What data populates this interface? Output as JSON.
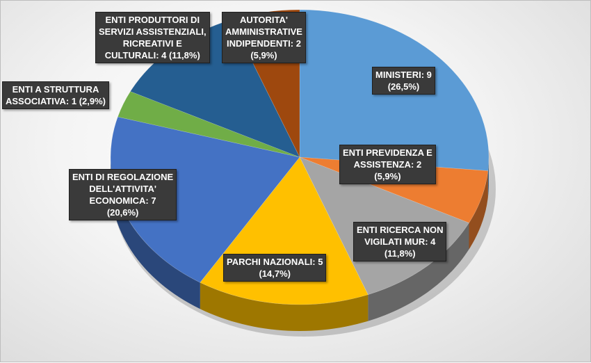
{
  "chart_data": {
    "type": "pie",
    "title": "",
    "slices": [
      {
        "name": "MINISTERI",
        "value": 9,
        "percent": "26,5%",
        "color": "#5b9bd5",
        "label": "MINISTERI: 9\n(26,5%)"
      },
      {
        "name": "ENTI PREVIDENZA E ASSISTENZA",
        "value": 2,
        "percent": "5,9%",
        "color": "#ed7d31",
        "label": "ENTI PREVIDENZA E\nASSISTENZA: 2\n(5,9%)"
      },
      {
        "name": "ENTI RICERCA NON VIGILATI MUR",
        "value": 4,
        "percent": "11,8%",
        "color": "#a5a5a5",
        "label": "ENTI RICERCA NON\nVIGILATI MUR: 4\n(11,8%)"
      },
      {
        "name": "PARCHI NAZIONALI",
        "value": 5,
        "percent": "14,7%",
        "color": "#ffc000",
        "label": "PARCHI NAZIONALI: 5\n(14,7%)"
      },
      {
        "name": "ENTI DI REGOLAZIONE DELL'ATTIVITA' ECONOMICA",
        "value": 7,
        "percent": "20,6%",
        "color": "#4472c4",
        "label": "ENTI DI REGOLAZIONE\nDELL'ATTIVITA'\nECONOMICA: 7\n(20,6%)"
      },
      {
        "name": "ENTI A STRUTTURA ASSOCIATIVA",
        "value": 1,
        "percent": "2,9%",
        "color": "#70ad47",
        "label": "ENTI A STRUTTURA\nASSOCIATIVA: 1 (2,9%)"
      },
      {
        "name": "ENTI PRODUTTORI DI SERVIZI ASSISTENZIALI, RICREATIVI E CULTURALI",
        "value": 4,
        "percent": "11,8%",
        "color": "#255e91",
        "label": "ENTI PRODUTTORI DI\nSERVIZI ASSISTENZIALI,\nRICREATIVI E\nCULTURALI: 4 (11,8%)"
      },
      {
        "name": "AUTORITA' AMMINISTRATIVE INDIPENDENTI",
        "value": 2,
        "percent": "5,9%",
        "color": "#9e480e",
        "label": "AUTORITA'\nAMMINISTRATIVE\nINDIPENDENTI: 2\n(5,9%)"
      }
    ],
    "style": "3d-pie",
    "legend": "none"
  }
}
